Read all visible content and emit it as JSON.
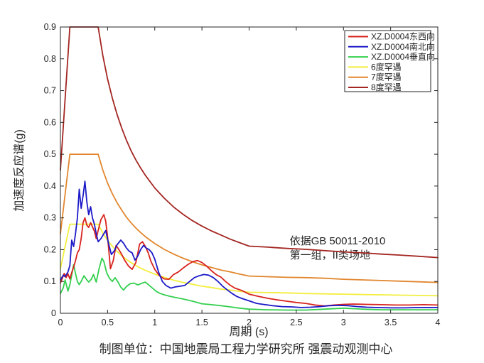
{
  "chart_data": {
    "type": "line",
    "title": "",
    "xlabel": "周期 (s)",
    "ylabel": "加速度反应谱(g)",
    "caption": "制图单位：中国地震局工程力学研究所 强震动观测中心",
    "xlim": [
      0,
      4
    ],
    "ylim": [
      0,
      0.9
    ],
    "grid": false,
    "axis_color": "#262626",
    "background": "#ffffff",
    "xtick_values": [
      0,
      0.5,
      1,
      1.5,
      2,
      2.5,
      3,
      3.5,
      4
    ],
    "xtick_labels": [
      "0",
      "0.5",
      "1",
      "1.5",
      "2",
      "2.5",
      "3",
      "3.5",
      "4"
    ],
    "ytick_values": [
      0,
      0.1,
      0.2,
      0.3,
      0.4,
      0.5,
      0.6,
      0.7,
      0.8,
      0.9
    ],
    "ytick_labels": [
      "0",
      "0.1",
      "0.2",
      "0.3",
      "0.4",
      "0.5",
      "0.6",
      "0.7",
      "0.8",
      "0.9"
    ],
    "legend": {
      "position": "upper-right",
      "border": true
    },
    "annotations": [
      {
        "text": "依据GB 50011-2010",
        "x": 2.43,
        "y": 0.217
      },
      {
        "text": "第一组，II类场地",
        "x": 2.43,
        "y": 0.172
      }
    ],
    "series": [
      {
        "id": "rare6",
        "name": "6度罕遇",
        "color": "#f2ee3e",
        "x": [
          0,
          0.1,
          0.4,
          0.45,
          0.5,
          0.55,
          0.6,
          0.65,
          0.7,
          0.75,
          0.8,
          0.85,
          0.9,
          0.95,
          1.0,
          1.1,
          1.2,
          1.3,
          1.4,
          1.5,
          1.6,
          1.7,
          1.8,
          1.9,
          2.0,
          2.2,
          2.4,
          2.6,
          2.8,
          3.0,
          3.2,
          3.4,
          3.6,
          3.8,
          4.0
        ],
        "y": [
          0.14,
          0.28,
          0.28,
          0.252,
          0.229,
          0.211,
          0.195,
          0.181,
          0.169,
          0.159,
          0.15,
          0.142,
          0.135,
          0.129,
          0.123,
          0.113,
          0.104,
          0.097,
          0.091,
          0.085,
          0.081,
          0.076,
          0.073,
          0.069,
          0.066,
          0.065,
          0.064,
          0.062,
          0.061,
          0.06,
          0.059,
          0.058,
          0.057,
          0.056,
          0.055
        ]
      },
      {
        "id": "rare7",
        "name": "7度罕遇",
        "color": "#e1862e",
        "x": [
          0,
          0.1,
          0.4,
          0.45,
          0.5,
          0.55,
          0.6,
          0.65,
          0.7,
          0.75,
          0.8,
          0.85,
          0.9,
          0.95,
          1.0,
          1.1,
          1.2,
          1.3,
          1.4,
          1.5,
          1.6,
          1.7,
          1.8,
          1.9,
          2.0,
          2.2,
          2.4,
          2.6,
          2.8,
          3.0,
          3.2,
          3.4,
          3.6,
          3.8,
          4.0
        ],
        "y": [
          0.25,
          0.5,
          0.5,
          0.45,
          0.409,
          0.376,
          0.348,
          0.324,
          0.302,
          0.284,
          0.268,
          0.254,
          0.241,
          0.23,
          0.219,
          0.201,
          0.186,
          0.173,
          0.162,
          0.152,
          0.144,
          0.136,
          0.13,
          0.123,
          0.117,
          0.115,
          0.113,
          0.112,
          0.11,
          0.107,
          0.105,
          0.103,
          0.101,
          0.099,
          0.097
        ]
      },
      {
        "id": "rare8",
        "name": "8度罕遇",
        "color": "#a32622",
        "x": [
          0,
          0.1,
          0.4,
          0.45,
          0.5,
          0.55,
          0.6,
          0.65,
          0.7,
          0.75,
          0.8,
          0.85,
          0.9,
          0.95,
          1.0,
          1.1,
          1.2,
          1.3,
          1.4,
          1.5,
          1.6,
          1.7,
          1.8,
          1.9,
          2.0,
          2.2,
          2.4,
          2.6,
          2.8,
          3.0,
          3.2,
          3.4,
          3.6,
          3.8,
          4.0
        ],
        "y": [
          0.45,
          0.9,
          0.9,
          0.81,
          0.736,
          0.677,
          0.626,
          0.582,
          0.544,
          0.51,
          0.482,
          0.457,
          0.434,
          0.414,
          0.394,
          0.362,
          0.334,
          0.311,
          0.291,
          0.274,
          0.259,
          0.246,
          0.233,
          0.222,
          0.211,
          0.208,
          0.204,
          0.201,
          0.197,
          0.193,
          0.19,
          0.186,
          0.183,
          0.179,
          0.175
        ]
      },
      {
        "id": "ud",
        "name": "XZ.D0004垂直向",
        "color": "#33cf4d",
        "x": [
          0,
          0.03,
          0.05,
          0.08,
          0.1,
          0.12,
          0.14,
          0.16,
          0.18,
          0.2,
          0.22,
          0.25,
          0.28,
          0.3,
          0.33,
          0.35,
          0.38,
          0.41,
          0.44,
          0.46,
          0.49,
          0.52,
          0.55,
          0.58,
          0.61,
          0.64,
          0.67,
          0.7,
          0.74,
          0.78,
          0.82,
          0.86,
          0.9,
          0.94,
          0.98,
          1.02,
          1.06,
          1.1,
          1.15,
          1.2,
          1.3,
          1.4,
          1.5,
          1.6,
          1.7,
          1.8,
          1.9,
          2.0,
          2.2,
          2.4,
          2.6,
          2.8,
          3.0,
          3.2,
          3.4,
          3.6,
          3.8,
          4.0
        ],
        "y": [
          0.062,
          0.08,
          0.105,
          0.07,
          0.09,
          0.12,
          0.153,
          0.125,
          0.1,
          0.09,
          0.1,
          0.118,
          0.105,
          0.098,
          0.108,
          0.122,
          0.098,
          0.14,
          0.173,
          0.163,
          0.128,
          0.11,
          0.1,
          0.112,
          0.098,
          0.082,
          0.073,
          0.084,
          0.093,
          0.095,
          0.089,
          0.094,
          0.098,
          0.088,
          0.078,
          0.068,
          0.062,
          0.058,
          0.054,
          0.051,
          0.045,
          0.038,
          0.03,
          0.027,
          0.024,
          0.02,
          0.016,
          0.013,
          0.011,
          0.01,
          0.01,
          0.013,
          0.016,
          0.013,
          0.011,
          0.011,
          0.011,
          0.011
        ]
      },
      {
        "id": "ew",
        "name": "XZ.D0004东西向",
        "color": "#d8231e",
        "x": [
          0,
          0.02,
          0.04,
          0.06,
          0.08,
          0.1,
          0.12,
          0.14,
          0.16,
          0.18,
          0.2,
          0.22,
          0.24,
          0.26,
          0.28,
          0.3,
          0.32,
          0.34,
          0.36,
          0.38,
          0.4,
          0.43,
          0.46,
          0.48,
          0.5,
          0.53,
          0.56,
          0.59,
          0.62,
          0.65,
          0.68,
          0.72,
          0.76,
          0.8,
          0.84,
          0.87,
          0.9,
          0.93,
          0.96,
          1.0,
          1.05,
          1.1,
          1.15,
          1.2,
          1.25,
          1.3,
          1.35,
          1.4,
          1.45,
          1.5,
          1.55,
          1.6,
          1.65,
          1.7,
          1.75,
          1.8,
          1.85,
          1.92,
          2.0,
          2.1,
          2.2,
          2.3,
          2.4,
          2.5,
          2.6,
          2.7,
          2.8,
          2.9,
          3.0,
          3.1,
          3.25,
          3.4,
          3.55,
          3.7,
          3.85,
          4.0
        ],
        "y": [
          0.095,
          0.11,
          0.125,
          0.112,
          0.124,
          0.108,
          0.128,
          0.145,
          0.165,
          0.19,
          0.2,
          0.235,
          0.285,
          0.3,
          0.277,
          0.27,
          0.285,
          0.272,
          0.258,
          0.235,
          0.26,
          0.295,
          0.31,
          0.29,
          0.24,
          0.14,
          0.165,
          0.213,
          0.2,
          0.185,
          0.167,
          0.149,
          0.138,
          0.16,
          0.218,
          0.225,
          0.21,
          0.19,
          0.163,
          0.138,
          0.118,
          0.108,
          0.107,
          0.122,
          0.13,
          0.142,
          0.153,
          0.162,
          0.166,
          0.16,
          0.148,
          0.134,
          0.122,
          0.114,
          0.1,
          0.088,
          0.079,
          0.072,
          0.06,
          0.053,
          0.047,
          0.042,
          0.038,
          0.034,
          0.031,
          0.026,
          0.023,
          0.026,
          0.028,
          0.029,
          0.028,
          0.027,
          0.026,
          0.026,
          0.027,
          0.026
        ]
      },
      {
        "id": "ns",
        "name": "XZ.D0004南北向",
        "color": "#1c1ac8",
        "x": [
          0,
          0.03,
          0.05,
          0.08,
          0.1,
          0.12,
          0.14,
          0.16,
          0.18,
          0.2,
          0.22,
          0.24,
          0.26,
          0.28,
          0.3,
          0.32,
          0.34,
          0.36,
          0.38,
          0.4,
          0.43,
          0.46,
          0.48,
          0.51,
          0.54,
          0.57,
          0.6,
          0.64,
          0.67,
          0.7,
          0.73,
          0.76,
          0.79,
          0.82,
          0.85,
          0.88,
          0.91,
          0.94,
          0.97,
          1.0,
          1.04,
          1.08,
          1.12,
          1.17,
          1.22,
          1.27,
          1.32,
          1.37,
          1.42,
          1.47,
          1.52,
          1.57,
          1.62,
          1.67,
          1.72,
          1.77,
          1.82,
          1.87,
          1.92,
          2.0,
          2.08,
          2.15,
          2.25,
          2.35,
          2.45,
          2.55,
          2.65,
          2.75,
          2.85,
          2.95,
          3.05,
          3.15,
          3.25,
          3.35,
          3.5,
          3.65,
          3.8,
          4.0
        ],
        "y": [
          0.105,
          0.12,
          0.115,
          0.13,
          0.15,
          0.23,
          0.21,
          0.25,
          0.3,
          0.39,
          0.33,
          0.37,
          0.415,
          0.35,
          0.31,
          0.335,
          0.3,
          0.28,
          0.25,
          0.225,
          0.235,
          0.25,
          0.26,
          0.22,
          0.185,
          0.196,
          0.215,
          0.23,
          0.22,
          0.205,
          0.195,
          0.19,
          0.167,
          0.18,
          0.2,
          0.213,
          0.205,
          0.2,
          0.19,
          0.17,
          0.13,
          0.1,
          0.087,
          0.079,
          0.083,
          0.085,
          0.088,
          0.1,
          0.112,
          0.118,
          0.122,
          0.12,
          0.112,
          0.1,
          0.085,
          0.073,
          0.062,
          0.053,
          0.047,
          0.039,
          0.031,
          0.028,
          0.024,
          0.021,
          0.02,
          0.018,
          0.019,
          0.021,
          0.024,
          0.025,
          0.024,
          0.021,
          0.019,
          0.018,
          0.017,
          0.017,
          0.018,
          0.018
        ]
      }
    ],
    "legend_order": [
      "ew",
      "ns",
      "ud",
      "rare6",
      "rare7",
      "rare8"
    ]
  }
}
